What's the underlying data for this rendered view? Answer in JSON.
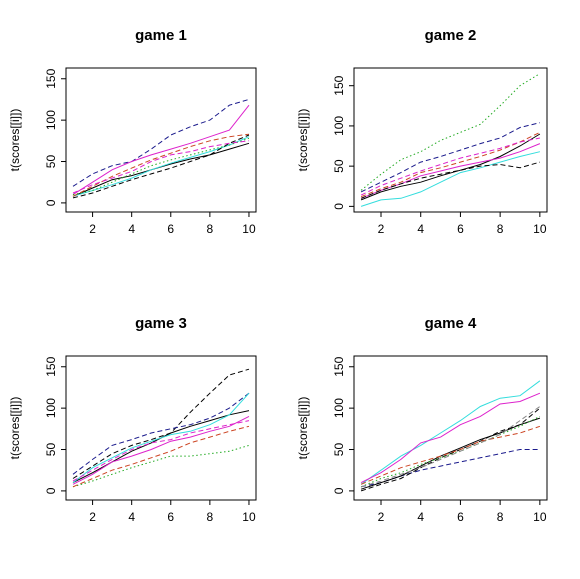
{
  "chart_data": [
    {
      "type": "line",
      "title": "game  1",
      "ylabel": "t(scores[[i]])",
      "x": [
        1,
        2,
        3,
        4,
        5,
        6,
        7,
        8,
        9,
        10
      ],
      "xlim": [
        0.64,
        10.36
      ],
      "ylim": [
        -11,
        163
      ],
      "xticks": [
        2,
        4,
        6,
        8,
        10
      ],
      "yticks": [
        0,
        50,
        100,
        150
      ],
      "series": [
        {
          "color": "#000000",
          "dash": "solid",
          "values": [
            8,
            18,
            28,
            33,
            40,
            47,
            53,
            58,
            65,
            72
          ]
        },
        {
          "color": "#1a1a8c",
          "dash": "dashed",
          "values": [
            20,
            35,
            45,
            50,
            65,
            82,
            92,
            100,
            118,
            125
          ]
        },
        {
          "color": "#dd22cc",
          "dash": "solid",
          "values": [
            10,
            25,
            40,
            50,
            58,
            65,
            72,
            80,
            88,
            118
          ]
        },
        {
          "color": "#33dddd",
          "dash": "solid",
          "values": [
            8,
            15,
            22,
            30,
            40,
            48,
            55,
            62,
            70,
            80
          ]
        },
        {
          "color": "#22aa22",
          "dash": "dotted",
          "values": [
            10,
            15,
            25,
            35,
            45,
            52,
            58,
            64,
            70,
            78
          ]
        },
        {
          "color": "#cc4422",
          "dash": "dashed",
          "values": [
            8,
            20,
            32,
            42,
            52,
            60,
            68,
            75,
            80,
            83
          ]
        },
        {
          "color": "#000000",
          "dash": "dashed",
          "values": [
            6,
            12,
            20,
            28,
            35,
            42,
            50,
            58,
            72,
            82
          ]
        },
        {
          "color": "#dd22cc",
          "dash": "dashed",
          "values": [
            12,
            22,
            30,
            38,
            50,
            58,
            62,
            68,
            72,
            75
          ]
        }
      ]
    },
    {
      "type": "line",
      "title": "game  2",
      "ylabel": "t(scores[[i]])",
      "x": [
        1,
        2,
        3,
        4,
        5,
        6,
        7,
        8,
        9,
        10
      ],
      "xlim": [
        0.64,
        10.36
      ],
      "ylim": [
        -7,
        172
      ],
      "xticks": [
        2,
        4,
        6,
        8,
        10
      ],
      "yticks": [
        0,
        50,
        100,
        150
      ],
      "series": [
        {
          "color": "#000000",
          "dash": "solid",
          "values": [
            8,
            18,
            25,
            30,
            38,
            45,
            52,
            62,
            75,
            90
          ]
        },
        {
          "color": "#1a1a8c",
          "dash": "dashed",
          "values": [
            18,
            30,
            42,
            55,
            62,
            70,
            78,
            85,
            98,
            104
          ]
        },
        {
          "color": "#22aa22",
          "dash": "dotted",
          "values": [
            20,
            40,
            58,
            68,
            82,
            92,
            102,
            125,
            150,
            165
          ]
        },
        {
          "color": "#33dddd",
          "dash": "solid",
          "values": [
            0,
            8,
            10,
            18,
            30,
            42,
            48,
            55,
            62,
            68
          ]
        },
        {
          "color": "#dd22cc",
          "dash": "solid",
          "values": [
            10,
            20,
            28,
            38,
            44,
            50,
            55,
            60,
            68,
            78
          ]
        },
        {
          "color": "#cc4422",
          "dash": "dashed",
          "values": [
            12,
            22,
            30,
            42,
            48,
            55,
            62,
            70,
            80,
            92
          ]
        },
        {
          "color": "#000000",
          "dash": "dashed",
          "values": [
            10,
            20,
            28,
            35,
            40,
            45,
            50,
            52,
            48,
            55
          ]
        },
        {
          "color": "#dd22cc",
          "dash": "dashed",
          "values": [
            14,
            26,
            35,
            44,
            52,
            60,
            66,
            72,
            80,
            85
          ]
        }
      ]
    },
    {
      "type": "line",
      "title": "game  3",
      "ylabel": "t(scores[[i]])",
      "x": [
        1,
        2,
        3,
        4,
        5,
        6,
        7,
        8,
        9,
        10
      ],
      "xlim": [
        0.64,
        10.36
      ],
      "ylim": [
        -11,
        163
      ],
      "xticks": [
        2,
        4,
        6,
        8,
        10
      ],
      "yticks": [
        0,
        50,
        100,
        150
      ],
      "series": [
        {
          "color": "#000000",
          "dash": "solid",
          "values": [
            10,
            22,
            35,
            48,
            58,
            70,
            78,
            85,
            92,
            97
          ]
        },
        {
          "color": "#000000",
          "dash": "dashed",
          "values": [
            15,
            30,
            45,
            55,
            62,
            70,
            95,
            118,
            140,
            147
          ]
        },
        {
          "color": "#1a1a8c",
          "dash": "dashed",
          "values": [
            20,
            38,
            55,
            62,
            70,
            75,
            80,
            88,
            100,
            118
          ]
        },
        {
          "color": "#33dddd",
          "dash": "solid",
          "values": [
            10,
            28,
            40,
            52,
            60,
            68,
            72,
            80,
            92,
            118
          ]
        },
        {
          "color": "#dd22cc",
          "dash": "solid",
          "values": [
            8,
            20,
            35,
            42,
            50,
            60,
            65,
            72,
            78,
            90
          ]
        },
        {
          "color": "#22aa22",
          "dash": "dotted",
          "values": [
            5,
            12,
            20,
            28,
            35,
            42,
            42,
            45,
            48,
            55
          ]
        },
        {
          "color": "#cc4422",
          "dash": "dashed",
          "values": [
            5,
            15,
            25,
            32,
            40,
            48,
            58,
            65,
            72,
            78
          ]
        },
        {
          "color": "#dd22cc",
          "dash": "dashed",
          "values": [
            12,
            25,
            38,
            50,
            58,
            62,
            70,
            75,
            80,
            85
          ]
        }
      ]
    },
    {
      "type": "line",
      "title": "game  4",
      "ylabel": "t(scores[[i]])",
      "x": [
        1,
        2,
        3,
        4,
        5,
        6,
        7,
        8,
        9,
        10
      ],
      "xlim": [
        0.64,
        10.36
      ],
      "ylim": [
        -11,
        163
      ],
      "xticks": [
        2,
        4,
        6,
        8,
        10
      ],
      "yticks": [
        0,
        50,
        100,
        150
      ],
      "series": [
        {
          "color": "#33dddd",
          "dash": "solid",
          "values": [
            8,
            25,
            42,
            55,
            70,
            85,
            102,
            112,
            115,
            133
          ]
        },
        {
          "color": "#dd22cc",
          "dash": "solid",
          "values": [
            10,
            22,
            38,
            58,
            65,
            80,
            90,
            105,
            108,
            118
          ]
        },
        {
          "color": "#1a1a8c",
          "dash": "dashed",
          "values": [
            5,
            10,
            18,
            25,
            30,
            35,
            40,
            45,
            50,
            50
          ]
        },
        {
          "color": "#000000",
          "dash": "solid",
          "values": [
            2,
            10,
            18,
            30,
            42,
            52,
            62,
            70,
            80,
            88
          ]
        },
        {
          "color": "#000000",
          "dash": "dashed",
          "values": [
            0,
            8,
            15,
            28,
            40,
            50,
            60,
            72,
            80,
            100
          ]
        },
        {
          "color": "#22aa22",
          "dash": "dotted",
          "values": [
            5,
            15,
            22,
            32,
            40,
            48,
            58,
            68,
            78,
            90
          ]
        },
        {
          "color": "#cc4422",
          "dash": "dashed",
          "values": [
            8,
            18,
            28,
            35,
            42,
            50,
            60,
            65,
            70,
            78
          ]
        },
        {
          "color": "#888888",
          "dash": "dashed",
          "values": [
            5,
            12,
            20,
            28,
            38,
            48,
            58,
            68,
            85,
            102
          ]
        }
      ]
    }
  ]
}
